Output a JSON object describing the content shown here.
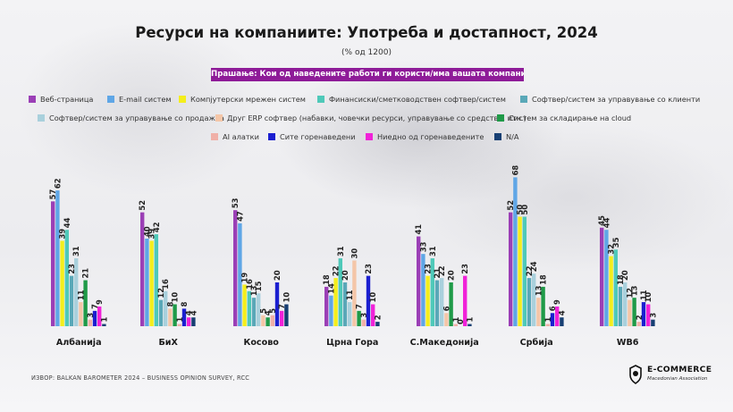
{
  "chart_data": {
    "type": "bar",
    "title": "Ресурси на компаниите: Употреба и достапност, 2024",
    "subtitle": "(% од 1200)",
    "question": "Прашање: Кои од наведените работи ги користи/има вашата компанија?",
    "categories": [
      "Албанија",
      "БиХ",
      "Косово",
      "Црна Гора",
      "С.Македонија",
      "Србија",
      "WB6"
    ],
    "series": [
      {
        "name": "Веб-страница",
        "color": "#9b3fb6",
        "values": [
          57,
          52,
          53,
          18,
          41,
          52,
          45
        ]
      },
      {
        "name": "E-mail систем",
        "color": "#5fa6e6",
        "values": [
          62,
          40,
          47,
          14,
          33,
          68,
          44
        ]
      },
      {
        "name": "Компјутерски мрежен систем",
        "color": "#f4ee1c",
        "values": [
          39,
          39,
          19,
          22,
          23,
          50,
          32
        ]
      },
      {
        "name": "Финансиски/сметководствен софтвер/систем",
        "color": "#4fc9b9",
        "values": [
          44,
          42,
          16,
          31,
          31,
          50,
          35
        ]
      },
      {
        "name": "Софтвер/систем за управување со клиенти",
        "color": "#5aa8b8",
        "values": [
          23,
          12,
          13,
          20,
          21,
          22,
          18
        ]
      },
      {
        "name": "Софтвер/систем за управување со продажба",
        "color": "#a9d0dc",
        "values": [
          31,
          16,
          15,
          11,
          22,
          24,
          20
        ]
      },
      {
        "name": "Друг ERP софтвер (набавки, човечки ресурси, управување со средства, итн.)",
        "color": "#f4c6a8",
        "values": [
          11,
          8,
          5,
          30,
          6,
          13,
          12
        ]
      },
      {
        "name": "Систем за складирање на cloud",
        "color": "#1f9a48",
        "values": [
          21,
          10,
          4,
          7,
          20,
          18,
          13
        ]
      },
      {
        "name": "AI алатки",
        "color": "#f0b0a8",
        "values": [
          3,
          1,
          5,
          3,
          1,
          1,
          2
        ]
      },
      {
        "name": "Сите горенаведени",
        "color": "#1b1fd0",
        "values": [
          7,
          8,
          20,
          23,
          0,
          6,
          11
        ]
      },
      {
        "name": "Ниедно од горенаведените",
        "color": "#f022d8",
        "values": [
          9,
          4,
          7,
          10,
          23,
          9,
          10
        ]
      },
      {
        "name": "N/A",
        "color": "#173f73",
        "values": [
          1,
          4,
          10,
          2,
          1,
          4,
          3
        ]
      }
    ],
    "ylim": [
      0,
      70
    ],
    "xlabel": "",
    "ylabel": "",
    "grid": false,
    "legend_position": "top",
    "data_labels": true
  },
  "source": "ИЗВОР: BALKAN BAROMETER 2024 – BUSINESS OPINION SURVEY, RCC",
  "logo": {
    "name": "E-COMMERCE",
    "sub": "Macedonian Association"
  }
}
